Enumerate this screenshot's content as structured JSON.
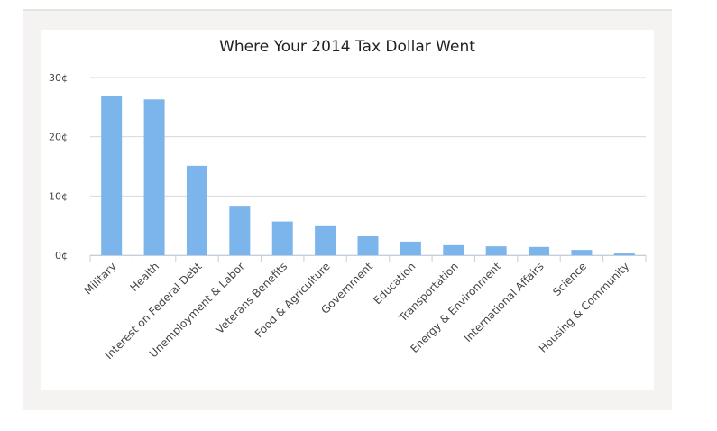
{
  "chart_data": {
    "type": "bar",
    "title": "Where Your 2014 Tax Dollar Went",
    "xlabel": "",
    "ylabel": "",
    "categories": [
      "Military",
      "Health",
      "Interest on Federal Debt",
      "Unemployment & Labor",
      "Veterans Benefits",
      "Food & Agriculture",
      "Government",
      "Education",
      "Transportation",
      "Energy & Environment",
      "International Affairs",
      "Science",
      "Housing & Community"
    ],
    "values": [
      26.8,
      26.3,
      15.1,
      8.2,
      5.7,
      4.9,
      3.2,
      2.3,
      1.7,
      1.5,
      1.4,
      0.9,
      0.3
    ],
    "ylim": [
      0,
      30
    ],
    "yticks": [
      "0¢",
      "10¢",
      "20¢",
      "30¢"
    ],
    "grid": true,
    "colors": {
      "bar": "#7cb5ec",
      "grid": "#d8d8d8",
      "axis": "#c0d0e0"
    }
  }
}
